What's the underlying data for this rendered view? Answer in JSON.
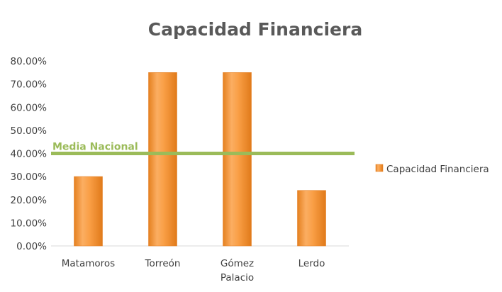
{
  "chart_data": {
    "type": "bar",
    "title": "Capacidad Financiera",
    "categories": [
      "Matamoros",
      "Torreón",
      "Gómez Palacio",
      "Lerdo"
    ],
    "category_lines": [
      [
        "Matamoros"
      ],
      [
        "Torreón"
      ],
      [
        "Gómez",
        "Palacio"
      ],
      [
        "Lerdo"
      ]
    ],
    "series": [
      {
        "name": "Capacidad Financiera",
        "values": [
          0.3,
          0.75,
          0.75,
          0.24
        ],
        "color": "#f79646"
      }
    ],
    "y_ticks": [
      "0.00%",
      "10.00%",
      "20.00%",
      "30.00%",
      "40.00%",
      "50.00%",
      "60.00%",
      "70.00%",
      "80.00%"
    ],
    "ylim": [
      0,
      0.8
    ],
    "reference_line": {
      "label": "Media Nacional",
      "value": 0.4,
      "color": "#9bbb59"
    },
    "legend_position": "right",
    "grid": false
  }
}
